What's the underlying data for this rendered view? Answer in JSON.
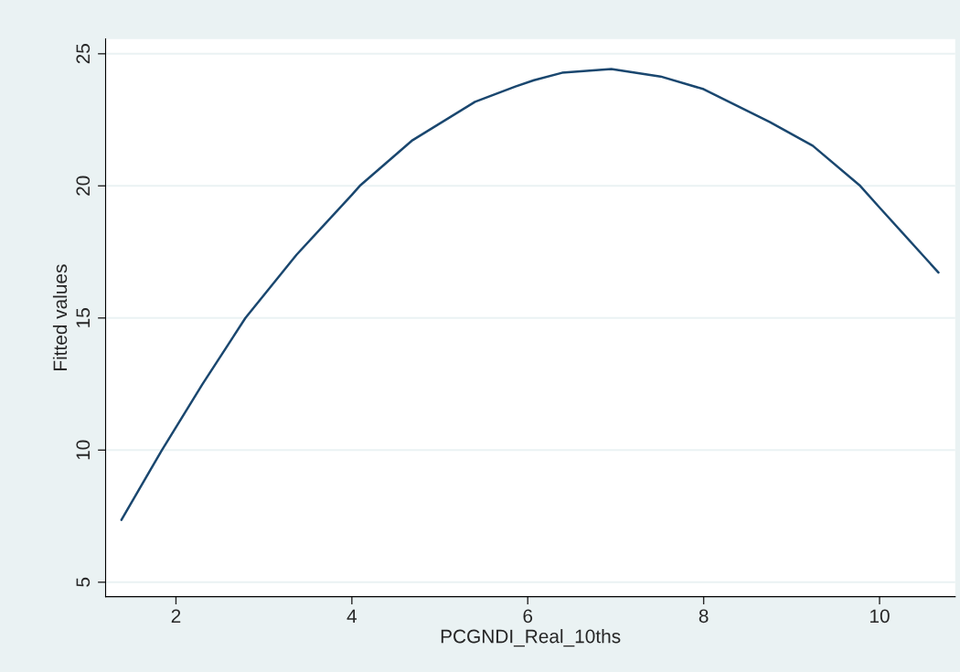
{
  "chart_data": {
    "type": "line",
    "xlabel": "PCGNDI_Real_10ths",
    "ylabel": "Fitted values",
    "x": [
      1.38,
      1.84,
      2.3,
      2.79,
      3.37,
      4.0,
      4.09,
      4.69,
      5.4,
      5.86,
      6.07,
      6.39,
      6.95,
      7.51,
      8.0,
      8.75,
      9.24,
      9.78,
      10.0,
      10.67
    ],
    "series": [
      {
        "color": "#1a476f",
        "values": [
          7.36,
          10.0,
          12.49,
          15.0,
          17.39,
          19.66,
          20.0,
          21.73,
          23.18,
          23.76,
          24.0,
          24.28,
          24.42,
          24.14,
          23.66,
          22.42,
          21.52,
          20.0,
          19.18,
          16.72
        ]
      }
    ],
    "xlim": [
      1.2,
      10.86
    ],
    "ylim": [
      4.45,
      25.56
    ],
    "xticks": [
      2,
      4,
      6,
      8,
      10
    ],
    "yticks": [
      5,
      10,
      15,
      20,
      25
    ],
    "grid": "y",
    "marker": "none",
    "line_style": "solid"
  }
}
